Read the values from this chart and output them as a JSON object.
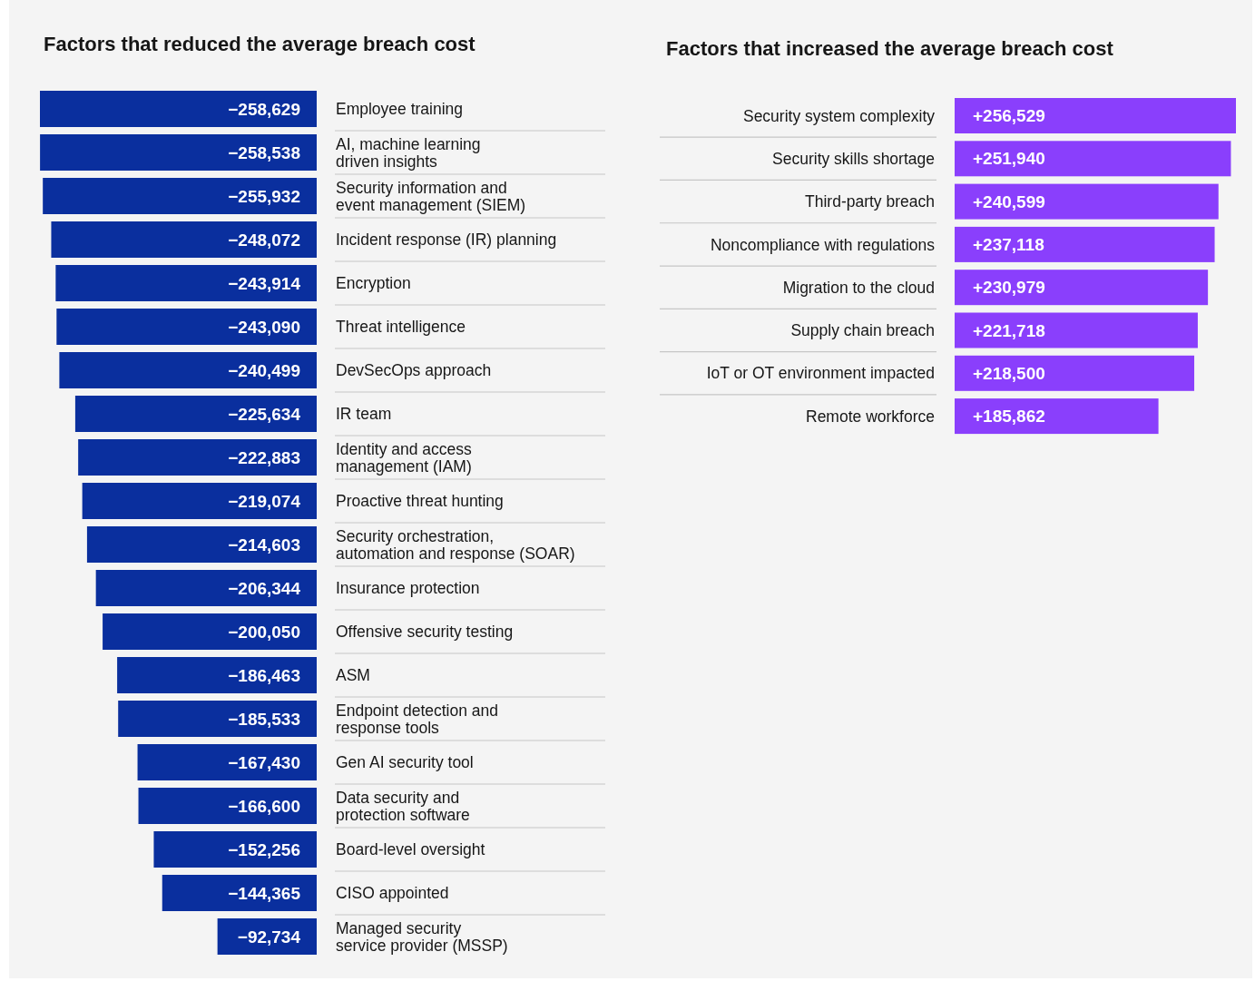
{
  "chart_data": [
    {
      "type": "bar",
      "orientation": "horizontal",
      "title": "Factors that reduced the average breach cost",
      "categories": [
        "Employee training",
        "AI, machine learning\ndriven insights",
        "Security information and\nevent management (SIEM)",
        "Incident response (IR) planning",
        "Encryption",
        "Threat intelligence",
        "DevSecOps approach",
        "IR team",
        "Identity and access\nmanagement (IAM)",
        "Proactive threat hunting",
        "Security orchestration,\nautomation and response (SOAR)",
        "Insurance protection",
        "Offensive security testing",
        "ASM",
        "Endpoint detection and\nresponse tools",
        "Gen AI security tool",
        "Data security and\nprotection software",
        "Board-level oversight",
        "CISO appointed",
        "Managed security\nservice provider (MSSP)"
      ],
      "values": [
        -258629,
        -258538,
        -255932,
        -248072,
        -243914,
        -243090,
        -240499,
        -225634,
        -222883,
        -219074,
        -214603,
        -206344,
        -200050,
        -186463,
        -185533,
        -167430,
        -166600,
        -152256,
        -144365,
        -92734
      ],
      "value_labels": [
        "−258,629",
        "−258,538",
        "−255,932",
        "−248,072",
        "−243,914",
        "−243,090",
        "−240,499",
        "−225,634",
        "−222,883",
        "−219,074",
        "−214,603",
        "−206,344",
        "−200,050",
        "−186,463",
        "−185,533",
        "−167,430",
        "−166,600",
        "−152,256",
        "−144,365",
        "−92,734"
      ],
      "color": "#0a2f9e"
    },
    {
      "type": "bar",
      "orientation": "horizontal",
      "title": "Factors that increased the average breach cost",
      "categories": [
        "Security system complexity",
        "Security skills shortage",
        "Third-party breach",
        "Noncompliance with regulations",
        "Migration to the cloud",
        "Supply chain breach",
        "IoT or OT environment impacted",
        "Remote workforce"
      ],
      "values": [
        256529,
        251940,
        240599,
        237118,
        230979,
        221718,
        218500,
        185862
      ],
      "value_labels": [
        "+256,529",
        "+251,940",
        "+240,599",
        "+237,118",
        "+230,979",
        "+221,718",
        "+218,500",
        "+185,862"
      ],
      "color": "#8a3ffc"
    }
  ]
}
